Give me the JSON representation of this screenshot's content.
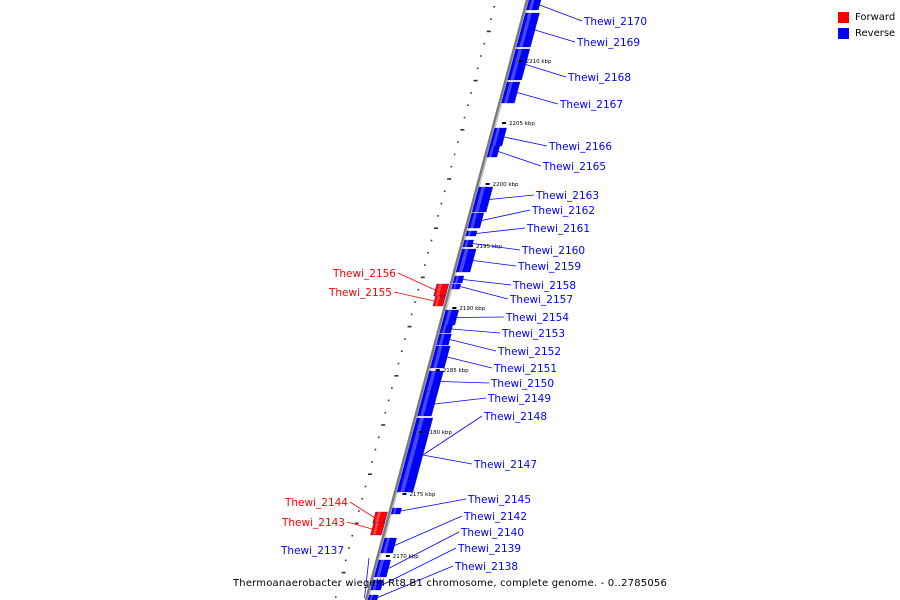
{
  "colors": {
    "forward": "#ff0000",
    "reverse": "#0000ff",
    "backbone": "#808080"
  },
  "legend": [
    {
      "label": "Forward",
      "color": "#ff0000"
    },
    {
      "label": "Reverse",
      "color": "#0000ff"
    }
  ],
  "caption": "Thermoanaerobacter wiegelii Rt8.B1 chromosome, complete genome. - 0..2785056",
  "scale_ticks": [
    "2210 kbp",
    "2205 kbp",
    "2200 kbp",
    "2195 kbp",
    "2190 kbp",
    "2185 kbp",
    "2180 kbp",
    "2175 kbp",
    "2170 kbp"
  ],
  "genes": [
    {
      "label": "Thewi_2170",
      "strand": "reverse"
    },
    {
      "label": "Thewi_2169",
      "strand": "reverse"
    },
    {
      "label": "Thewi_2168",
      "strand": "reverse"
    },
    {
      "label": "Thewi_2167",
      "strand": "reverse"
    },
    {
      "label": "Thewi_2166",
      "strand": "reverse"
    },
    {
      "label": "Thewi_2165",
      "strand": "reverse"
    },
    {
      "label": "Thewi_2163",
      "strand": "reverse"
    },
    {
      "label": "Thewi_2162",
      "strand": "reverse"
    },
    {
      "label": "Thewi_2161",
      "strand": "reverse"
    },
    {
      "label": "Thewi_2160",
      "strand": "reverse"
    },
    {
      "label": "Thewi_2159",
      "strand": "reverse"
    },
    {
      "label": "Thewi_2156",
      "strand": "forward"
    },
    {
      "label": "Thewi_2155",
      "strand": "forward"
    },
    {
      "label": "Thewi_2158",
      "strand": "reverse"
    },
    {
      "label": "Thewi_2157",
      "strand": "reverse"
    },
    {
      "label": "Thewi_2154",
      "strand": "reverse"
    },
    {
      "label": "Thewi_2153",
      "strand": "reverse"
    },
    {
      "label": "Thewi_2152",
      "strand": "reverse"
    },
    {
      "label": "Thewi_2151",
      "strand": "reverse"
    },
    {
      "label": "Thewi_2150",
      "strand": "reverse"
    },
    {
      "label": "Thewi_2149",
      "strand": "reverse"
    },
    {
      "label": "Thewi_2148",
      "strand": "reverse"
    },
    {
      "label": "Thewi_2147",
      "strand": "reverse"
    },
    {
      "label": "Thewi_2145",
      "strand": "reverse"
    },
    {
      "label": "Thewi_2144",
      "strand": "forward"
    },
    {
      "label": "Thewi_2143",
      "strand": "forward"
    },
    {
      "label": "Thewi_2142",
      "strand": "reverse"
    },
    {
      "label": "Thewi_2140",
      "strand": "reverse"
    },
    {
      "label": "Thewi_2139",
      "strand": "reverse"
    },
    {
      "label": "Thewi_2138",
      "strand": "reverse"
    },
    {
      "label": "Thewi_2137",
      "strand": "reverse"
    }
  ]
}
